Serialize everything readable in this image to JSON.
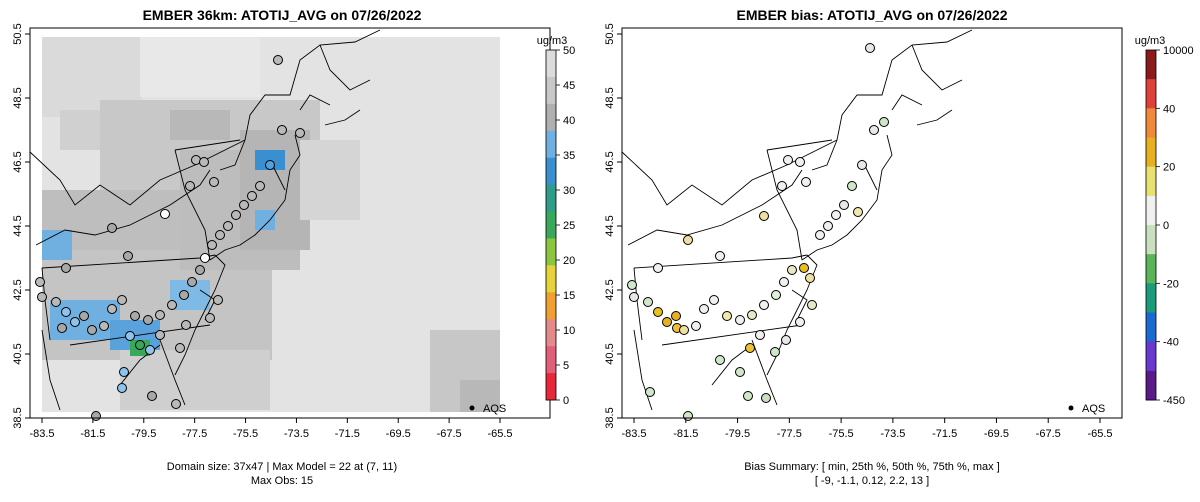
{
  "left_panel": {
    "title": "EMBER 36km: ATOTIJ_AVG on 07/26/2022",
    "footer_line1": "Domain size: 37x47 | Max Model = 22 at (7, 11)",
    "footer_line2": "Max Obs: 15",
    "legend_label": "AQS",
    "colorbar": {
      "unit": "ug/m3",
      "ticks": [
        "50",
        "45",
        "40",
        "35",
        "30",
        "25",
        "20",
        "15",
        "10",
        "5",
        "0"
      ],
      "colors": [
        "#dcdcdc",
        "#c8c8c8",
        "#b0b0b0",
        "#6fb0e0",
        "#3a8fd0",
        "#2f9c8a",
        "#3aa85a",
        "#8cc63f",
        "#e6d23a",
        "#f0a030",
        "#e58a8a",
        "#e0607a",
        "#e8283a"
      ]
    }
  },
  "right_panel": {
    "title": "EMBER bias: ATOTIJ_AVG on 07/26/2022",
    "footer_line1": "Bias Summary: [ min, 25th %, 50th %, 75th %, max ]",
    "footer_line2": "[ -9,   -1.1,   0.12,   2.2,   13 ]",
    "legend_label": "AQS",
    "colorbar": {
      "unit": "ug/m3",
      "ticks": [
        "10000",
        "40",
        "20",
        "0",
        "-20",
        "-40",
        "-450"
      ],
      "colors": [
        "#8b1a1a",
        "#e0403a",
        "#f08a3a",
        "#e6b020",
        "#e8e070",
        "#f0f0f0",
        "#c8e0c0",
        "#5ab45a",
        "#1a9c7a",
        "#1a6ad0",
        "#6a3ad0",
        "#5a1a8a"
      ]
    }
  },
  "axes": {
    "lon_ticks": [
      "-83.5",
      "-81.5",
      "-79.5",
      "-77.5",
      "-75.5",
      "-73.5",
      "-71.5",
      "-69.5",
      "-67.5",
      "-65.5"
    ],
    "lat_ticks": [
      "38.5",
      "40.5",
      "42.5",
      "44.5",
      "46.5",
      "48.5",
      "50.5"
    ]
  },
  "colors": {
    "frame": "#000000",
    "land_line": "#000000",
    "point_stroke": "#000000"
  }
}
